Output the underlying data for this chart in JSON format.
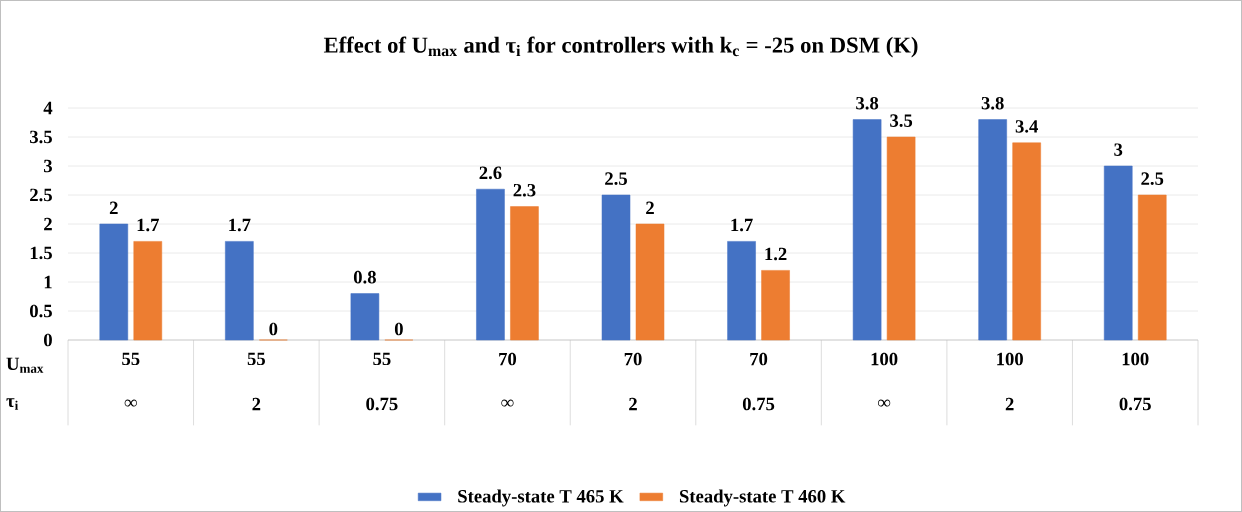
{
  "chart_data": {
    "type": "bar",
    "title": "Effect of U$_{max}$ and τ$_{i}$ for controllers with k$_{c}$ = -25 on DSM (K)",
    "categories": [
      "55",
      "55",
      "55",
      "70",
      "70",
      "70",
      "100",
      "100",
      "100"
    ],
    "series": [
      {
        "name": "Steady-state T 465 K",
        "color": "#4472c4",
        "values": [
          2,
          1.7,
          0.8,
          2.6,
          2.5,
          1.7,
          3.8,
          3.8,
          3
        ]
      },
      {
        "name": "Steady-state T 460 K",
        "color": "#ed7d31",
        "values": [
          1.7,
          0,
          0,
          2.3,
          2,
          1.2,
          3.5,
          3.4,
          2.5
        ]
      }
    ],
    "ylim": [
      0,
      4
    ],
    "yticks": [
      0,
      0.5,
      1,
      1.5,
      2,
      2.5,
      3,
      3.5,
      4
    ],
    "grid": "y",
    "legend": "bottom",
    "data_labels": true,
    "annotations": [
      "U$_{max}$",
      "τ$_{i}$",
      "∞",
      "2",
      "0.75",
      "∞",
      "2",
      "0.75",
      "∞",
      "2",
      "0.75"
    ]
  }
}
